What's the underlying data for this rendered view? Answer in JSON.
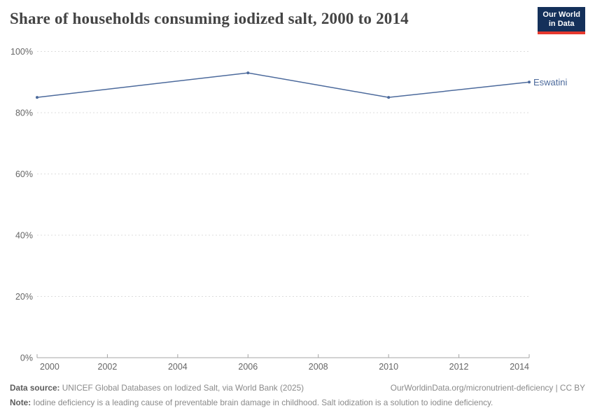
{
  "header": {
    "title": "Share of households consuming iodized salt, 2000 to 2014",
    "logo": {
      "line1": "Our World",
      "line2": "in Data",
      "bg_color": "#14305a",
      "accent_color": "#e6392e"
    }
  },
  "chart_data": {
    "type": "line",
    "title": "Share of households consuming iodized salt, 2000 to 2014",
    "x": [
      2000,
      2006,
      2010,
      2014
    ],
    "series": [
      {
        "name": "Eswatini",
        "values": [
          85,
          93,
          85,
          90
        ],
        "color": "#4C6A9C"
      }
    ],
    "xlabel": "",
    "ylabel": "",
    "xlim": [
      2000,
      2014
    ],
    "ylim": [
      0,
      100
    ],
    "xticks": [
      2000,
      2002,
      2004,
      2006,
      2008,
      2010,
      2012,
      2014
    ],
    "yticks": [
      0,
      20,
      40,
      60,
      80,
      100
    ],
    "ytick_suffix": "%",
    "grid": "horizontal-dashed",
    "legend_position": "end-of-line",
    "colors": {
      "gridline": "#dcdcdc",
      "axis": "#a5a5a5",
      "tick_label": "#666666"
    }
  },
  "footer": {
    "datasource_label": "Data source:",
    "datasource_text": " UNICEF Global Databases on Iodized Salt, via World Bank (2025)",
    "link_text": "OurWorldinData.org/micronutrient-deficiency | CC BY",
    "note_label": "Note:",
    "note_text": " Iodine deficiency is a leading cause of preventable brain damage in childhood. Salt iodization is a solution to iodine deficiency."
  }
}
